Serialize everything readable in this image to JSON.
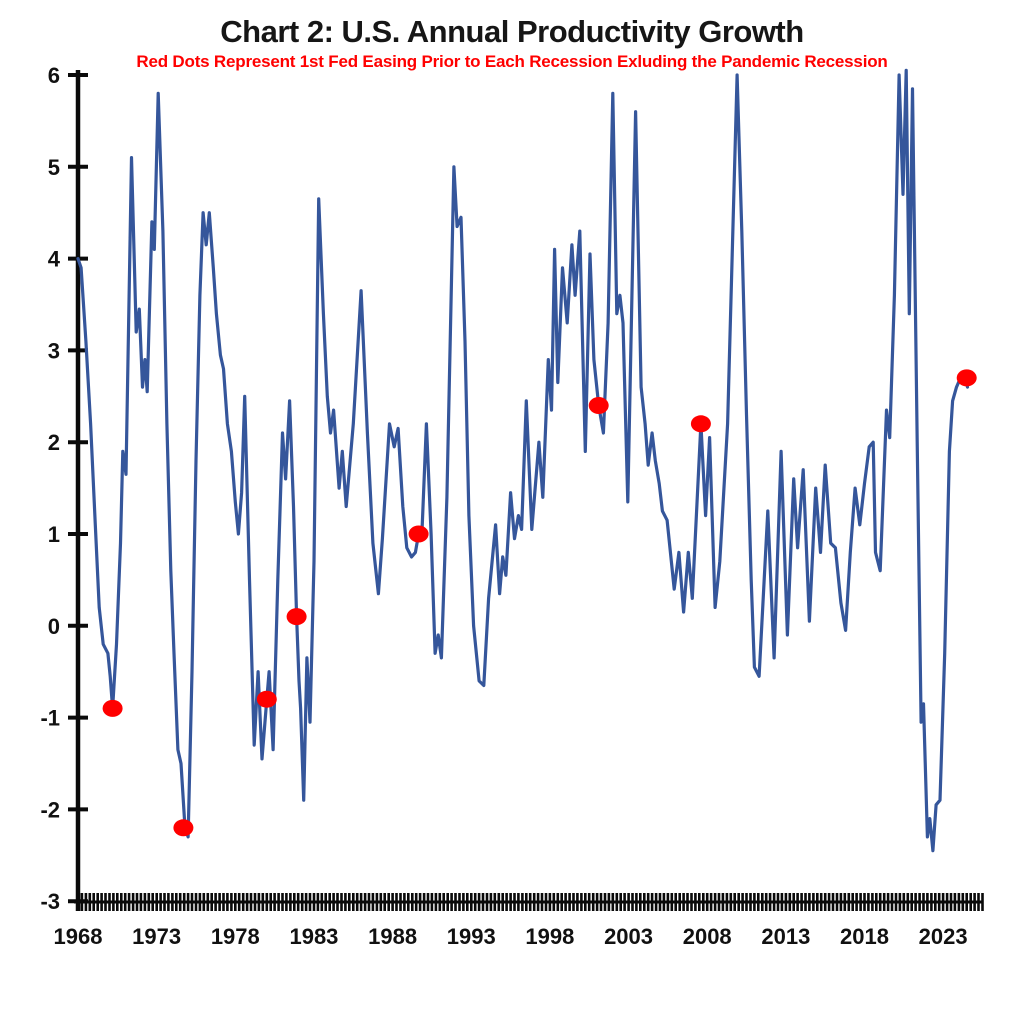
{
  "header": {
    "title": "Chart 2: U.S. Annual Productivity Growth",
    "subtitle": "Red Dots Represent 1st Fed Easing Prior to Each Recession Exluding the Pandemic Recession",
    "title_color": "#161616",
    "subtitle_color": "#FF0000"
  },
  "chart_data": {
    "type": "line",
    "title": "Chart 2: U.S. Annual Productivity Growth",
    "subtitle": "Red Dots Represent 1st Fed Easing Prior to Each Recession Exluding the Pandemic Recession",
    "grid": false,
    "legend": "none",
    "x_axis": {
      "ticks": [
        1968,
        1973,
        1978,
        1983,
        1988,
        1993,
        1998,
        2003,
        2008,
        2013,
        2018,
        2023
      ],
      "min": 1968,
      "max": 2025.5,
      "minor_tick_interval": 0.25
    },
    "y_axis": {
      "ticks": [
        6,
        5,
        4,
        3,
        2,
        1,
        0,
        -1,
        -2,
        -3
      ],
      "min": -3,
      "max": 6
    },
    "series": [
      {
        "name": "U.S. annual productivity growth (quarterly, percent)",
        "color": "#35569B",
        "points": [
          [
            1968.0,
            4.0
          ],
          [
            1968.2,
            3.9
          ],
          [
            1968.5,
            3.1
          ],
          [
            1968.8,
            2.2
          ],
          [
            1969.1,
            1.1
          ],
          [
            1969.35,
            0.2
          ],
          [
            1969.6,
            -0.2
          ],
          [
            1969.9,
            -0.3
          ],
          [
            1970.05,
            -0.55
          ],
          [
            1970.2,
            -0.9
          ],
          [
            1970.45,
            -0.2
          ],
          [
            1970.7,
            0.9
          ],
          [
            1970.85,
            1.9
          ],
          [
            1971.05,
            1.65
          ],
          [
            1971.4,
            5.1
          ],
          [
            1971.7,
            3.2
          ],
          [
            1971.9,
            3.45
          ],
          [
            1972.1,
            2.6
          ],
          [
            1972.25,
            2.9
          ],
          [
            1972.4,
            2.55
          ],
          [
            1972.7,
            4.4
          ],
          [
            1972.85,
            4.1
          ],
          [
            1973.1,
            5.8
          ],
          [
            1973.4,
            4.3
          ],
          [
            1973.65,
            2.2
          ],
          [
            1973.9,
            0.6
          ],
          [
            1974.1,
            -0.3
          ],
          [
            1974.35,
            -1.35
          ],
          [
            1974.55,
            -1.5
          ],
          [
            1974.8,
            -2.2
          ],
          [
            1975.0,
            -2.3
          ],
          [
            1975.25,
            -0.5
          ],
          [
            1975.5,
            1.8
          ],
          [
            1975.75,
            3.6
          ],
          [
            1975.95,
            4.5
          ],
          [
            1976.15,
            4.15
          ],
          [
            1976.35,
            4.5
          ],
          [
            1976.6,
            3.9
          ],
          [
            1976.8,
            3.4
          ],
          [
            1977.05,
            2.95
          ],
          [
            1977.25,
            2.8
          ],
          [
            1977.5,
            2.2
          ],
          [
            1977.75,
            1.9
          ],
          [
            1978.0,
            1.35
          ],
          [
            1978.2,
            1.0
          ],
          [
            1978.4,
            1.45
          ],
          [
            1978.6,
            2.5
          ],
          [
            1978.9,
            0.5
          ],
          [
            1979.2,
            -1.3
          ],
          [
            1979.45,
            -0.5
          ],
          [
            1979.7,
            -1.45
          ],
          [
            1980.0,
            -0.8
          ],
          [
            1980.15,
            -0.5
          ],
          [
            1980.4,
            -1.35
          ],
          [
            1980.7,
            0.5
          ],
          [
            1981.0,
            2.1
          ],
          [
            1981.2,
            1.6
          ],
          [
            1981.45,
            2.45
          ],
          [
            1981.7,
            1.3
          ],
          [
            1981.9,
            0.1
          ],
          [
            1982.05,
            -0.6
          ],
          [
            1982.15,
            -0.9
          ],
          [
            1982.35,
            -1.9
          ],
          [
            1982.55,
            -0.35
          ],
          [
            1982.75,
            -1.05
          ],
          [
            1983.0,
            0.7
          ],
          [
            1983.3,
            4.65
          ],
          [
            1983.6,
            3.4
          ],
          [
            1983.85,
            2.5
          ],
          [
            1984.05,
            2.1
          ],
          [
            1984.25,
            2.35
          ],
          [
            1984.6,
            1.5
          ],
          [
            1984.8,
            1.9
          ],
          [
            1985.05,
            1.3
          ],
          [
            1985.5,
            2.2
          ],
          [
            1986.0,
            3.65
          ],
          [
            1986.4,
            2.1
          ],
          [
            1986.75,
            0.9
          ],
          [
            1987.1,
            0.35
          ],
          [
            1987.35,
            0.95
          ],
          [
            1987.8,
            2.2
          ],
          [
            1988.1,
            1.95
          ],
          [
            1988.35,
            2.15
          ],
          [
            1988.65,
            1.3
          ],
          [
            1988.9,
            0.85
          ],
          [
            1989.2,
            0.75
          ],
          [
            1989.45,
            0.8
          ],
          [
            1989.65,
            1.0
          ],
          [
            1989.85,
            0.95
          ],
          [
            1990.15,
            2.2
          ],
          [
            1990.45,
            1.0
          ],
          [
            1990.7,
            -0.3
          ],
          [
            1990.9,
            -0.1
          ],
          [
            1991.1,
            -0.35
          ],
          [
            1991.45,
            1.4
          ],
          [
            1991.9,
            5.0
          ],
          [
            1992.1,
            4.35
          ],
          [
            1992.35,
            4.45
          ],
          [
            1992.6,
            3.1
          ],
          [
            1992.85,
            1.2
          ],
          [
            1993.15,
            0.0
          ],
          [
            1993.5,
            -0.6
          ],
          [
            1993.8,
            -0.65
          ],
          [
            1994.1,
            0.3
          ],
          [
            1994.55,
            1.1
          ],
          [
            1994.8,
            0.35
          ],
          [
            1995.0,
            0.75
          ],
          [
            1995.2,
            0.55
          ],
          [
            1995.5,
            1.45
          ],
          [
            1995.75,
            0.95
          ],
          [
            1996.0,
            1.2
          ],
          [
            1996.2,
            1.05
          ],
          [
            1996.5,
            2.45
          ],
          [
            1996.85,
            1.05
          ],
          [
            1997.3,
            2.0
          ],
          [
            1997.55,
            1.4
          ],
          [
            1997.9,
            2.9
          ],
          [
            1998.1,
            2.35
          ],
          [
            1998.3,
            4.1
          ],
          [
            1998.5,
            2.65
          ],
          [
            1998.8,
            3.9
          ],
          [
            1999.1,
            3.3
          ],
          [
            1999.4,
            4.15
          ],
          [
            1999.6,
            3.6
          ],
          [
            1999.9,
            4.3
          ],
          [
            2000.25,
            1.9
          ],
          [
            2000.55,
            4.05
          ],
          [
            2000.8,
            2.9
          ],
          [
            2001.1,
            2.4
          ],
          [
            2001.4,
            2.1
          ],
          [
            2001.7,
            3.3
          ],
          [
            2002.0,
            5.8
          ],
          [
            2002.25,
            3.4
          ],
          [
            2002.45,
            3.6
          ],
          [
            2002.65,
            3.3
          ],
          [
            2002.95,
            1.35
          ],
          [
            2003.45,
            5.6
          ],
          [
            2003.8,
            2.6
          ],
          [
            2004.05,
            2.2
          ],
          [
            2004.25,
            1.75
          ],
          [
            2004.5,
            2.1
          ],
          [
            2004.7,
            1.8
          ],
          [
            2004.95,
            1.55
          ],
          [
            2005.15,
            1.25
          ],
          [
            2005.45,
            1.15
          ],
          [
            2005.9,
            0.4
          ],
          [
            2006.2,
            0.8
          ],
          [
            2006.5,
            0.15
          ],
          [
            2006.8,
            0.8
          ],
          [
            2007.05,
            0.3
          ],
          [
            2007.6,
            2.2
          ],
          [
            2007.9,
            1.2
          ],
          [
            2008.15,
            2.05
          ],
          [
            2008.5,
            0.2
          ],
          [
            2008.8,
            0.7
          ],
          [
            2009.3,
            2.2
          ],
          [
            2009.9,
            6.0
          ],
          [
            2010.2,
            4.3
          ],
          [
            2010.5,
            2.3
          ],
          [
            2010.8,
            0.5
          ],
          [
            2011.0,
            -0.45
          ],
          [
            2011.3,
            -0.55
          ],
          [
            2011.85,
            1.25
          ],
          [
            2012.25,
            -0.35
          ],
          [
            2012.7,
            1.9
          ],
          [
            2013.1,
            -0.1
          ],
          [
            2013.5,
            1.6
          ],
          [
            2013.75,
            0.85
          ],
          [
            2014.1,
            1.7
          ],
          [
            2014.5,
            0.05
          ],
          [
            2014.9,
            1.5
          ],
          [
            2015.2,
            0.8
          ],
          [
            2015.5,
            1.75
          ],
          [
            2015.85,
            0.9
          ],
          [
            2016.15,
            0.85
          ],
          [
            2016.5,
            0.25
          ],
          [
            2016.8,
            -0.05
          ],
          [
            2017.1,
            0.8
          ],
          [
            2017.4,
            1.5
          ],
          [
            2017.7,
            1.1
          ],
          [
            2018.0,
            1.55
          ],
          [
            2018.3,
            1.95
          ],
          [
            2018.55,
            2.0
          ],
          [
            2018.7,
            0.8
          ],
          [
            2019.0,
            0.6
          ],
          [
            2019.4,
            2.35
          ],
          [
            2019.6,
            2.05
          ],
          [
            2019.9,
            3.6
          ],
          [
            2020.2,
            6.0
          ],
          [
            2020.45,
            4.7
          ],
          [
            2020.65,
            6.05
          ],
          [
            2020.85,
            3.4
          ],
          [
            2021.05,
            5.85
          ],
          [
            2021.35,
            2.0
          ],
          [
            2021.6,
            -1.05
          ],
          [
            2021.75,
            -0.85
          ],
          [
            2022.0,
            -2.3
          ],
          [
            2022.15,
            -2.1
          ],
          [
            2022.35,
            -2.45
          ],
          [
            2022.55,
            -1.95
          ],
          [
            2022.8,
            -1.9
          ],
          [
            2023.1,
            -0.3
          ],
          [
            2023.4,
            1.9
          ],
          [
            2023.6,
            2.45
          ],
          [
            2023.85,
            2.6
          ],
          [
            2024.1,
            2.7
          ],
          [
            2024.3,
            2.75
          ],
          [
            2024.55,
            2.6
          ]
        ]
      }
    ],
    "red_dots": {
      "name": "1st Fed easing prior to each recession (excluding pandemic recession)",
      "color": "#FF0000",
      "points": [
        [
          1970.2,
          -0.9
        ],
        [
          1974.7,
          -2.2
        ],
        [
          1980.0,
          -0.8
        ],
        [
          1981.9,
          0.1
        ],
        [
          1989.65,
          1.0
        ],
        [
          2001.1,
          2.4
        ],
        [
          2007.6,
          2.2
        ],
        [
          2024.5,
          2.7
        ]
      ]
    }
  }
}
